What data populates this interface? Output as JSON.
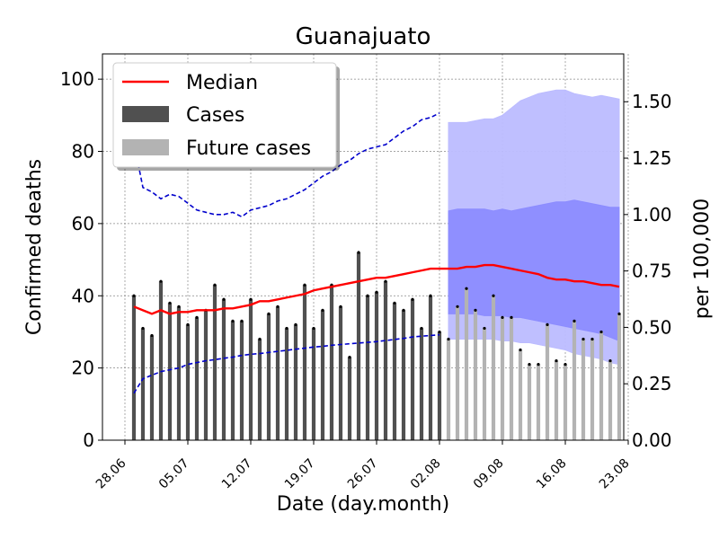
{
  "chart_data": {
    "type": "bar",
    "title": "Guanajuato",
    "xlabel": "Date (day.month)",
    "ylabel": "Confirmed deaths",
    "ylabel_right": "per 100,000",
    "ylim": [
      0,
      107
    ],
    "ylim_right": [
      0,
      1.712
    ],
    "yticks": [
      0,
      20,
      40,
      60,
      80,
      100
    ],
    "yticks_right": [
      "0.00",
      "0.25",
      "0.50",
      "0.75",
      "1.00",
      "1.25",
      "1.50"
    ],
    "xlim_days": [
      -2.5,
      55.5
    ],
    "x_tick_labels": [
      "28.06",
      "05.07",
      "12.07",
      "19.07",
      "26.07",
      "02.08",
      "09.08",
      "16.08",
      "23.08"
    ],
    "grid": true,
    "legend_position": "top-left",
    "legend": [
      "Median",
      "Cases",
      "Future cases"
    ],
    "colors": {
      "cases": "#505050",
      "future_cases": "#b3b3b3",
      "median": "#ff0000",
      "per_capita": "#0000cc",
      "band_outer": "#bcbcff",
      "band_inner": "#8c8cff"
    },
    "cases": {
      "start_date": "29.06",
      "values": [
        40,
        31,
        29,
        44,
        38,
        37,
        32,
        34,
        36,
        43,
        39,
        33,
        33,
        39,
        28,
        35,
        37,
        31,
        32,
        43,
        31,
        36,
        43,
        37,
        23,
        52,
        40,
        41,
        44,
        38,
        36,
        39,
        31,
        40,
        30
      ]
    },
    "future_cases": {
      "start_date": "03.08",
      "values": [
        28,
        37,
        42,
        36,
        31,
        40,
        34,
        34,
        25,
        21,
        21,
        32,
        22,
        21,
        33,
        28,
        28,
        30,
        22,
        35
      ]
    },
    "median": {
      "start_date": "29.06",
      "values": [
        37,
        36,
        35,
        36,
        35,
        35.5,
        35.5,
        36,
        36,
        36,
        36.5,
        36.5,
        37,
        37.5,
        38.5,
        38.5,
        39,
        39.5,
        40,
        40.5,
        41.5,
        42,
        42.5,
        43,
        43.5,
        44,
        44.5,
        45,
        45,
        45.5,
        46,
        46.5,
        47,
        47.5,
        47.5,
        47.5,
        47.5,
        48,
        48,
        48.5,
        48.5,
        48,
        47.5,
        47,
        46.5,
        46,
        45,
        44.5,
        44.5,
        44,
        44,
        43.5,
        43,
        43,
        42.5
      ]
    },
    "per_capita_median": {
      "start_date": "29.06",
      "values": [
        1.32,
        1.12,
        1.1,
        1.07,
        1.09,
        1.08,
        1.05,
        1.02,
        1.01,
        1.0,
        1.0,
        1.01,
        0.99,
        1.02,
        1.03,
        1.04,
        1.06,
        1.07,
        1.09,
        1.11,
        1.14,
        1.17,
        1.19,
        1.22,
        1.24,
        1.27,
        1.29,
        1.3,
        1.31,
        1.34,
        1.37,
        1.39,
        1.42,
        1.43,
        1.45
      ]
    },
    "cumulative": {
      "start_date": "29.06",
      "values": [
        13,
        17,
        18,
        19,
        19.5,
        20,
        21,
        21.5,
        22,
        22.3,
        22.7,
        23,
        23.5,
        23.8,
        24,
        24.3,
        24.6,
        24.9,
        25.2,
        25.5,
        25.8,
        26,
        26.3,
        26.5,
        26.7,
        26.9,
        27.1,
        27.3,
        27.6,
        27.9,
        28.2,
        28.6,
        28.8,
        29.0,
        29.2
      ]
    },
    "interval_95": {
      "start_date": "03.08",
      "lower": [
        28,
        28,
        28,
        28,
        28,
        28,
        27.5,
        27.5,
        27,
        27,
        26.5,
        26,
        25.5,
        25,
        24,
        23.5,
        23,
        22.5,
        21.5,
        21
      ],
      "upper": [
        88,
        88,
        88,
        88.5,
        89,
        89,
        90,
        92,
        94,
        95,
        96,
        96.5,
        97,
        97,
        96,
        95.5,
        95,
        95.5,
        95,
        94.5
      ]
    },
    "interval_50": {
      "start_date": "03.08",
      "lower": [
        35,
        35,
        35,
        35,
        34.5,
        34.5,
        34.5,
        34,
        34,
        33.5,
        33,
        32.5,
        32,
        31.5,
        31,
        30.5,
        30,
        29.5,
        28.5,
        27.5
      ],
      "upper": [
        63.5,
        64,
        64,
        64,
        64,
        63.5,
        64,
        63.5,
        64,
        64.5,
        65,
        65.5,
        66,
        66,
        66.5,
        66,
        65.5,
        65,
        64.5,
        64.5
      ]
    }
  }
}
